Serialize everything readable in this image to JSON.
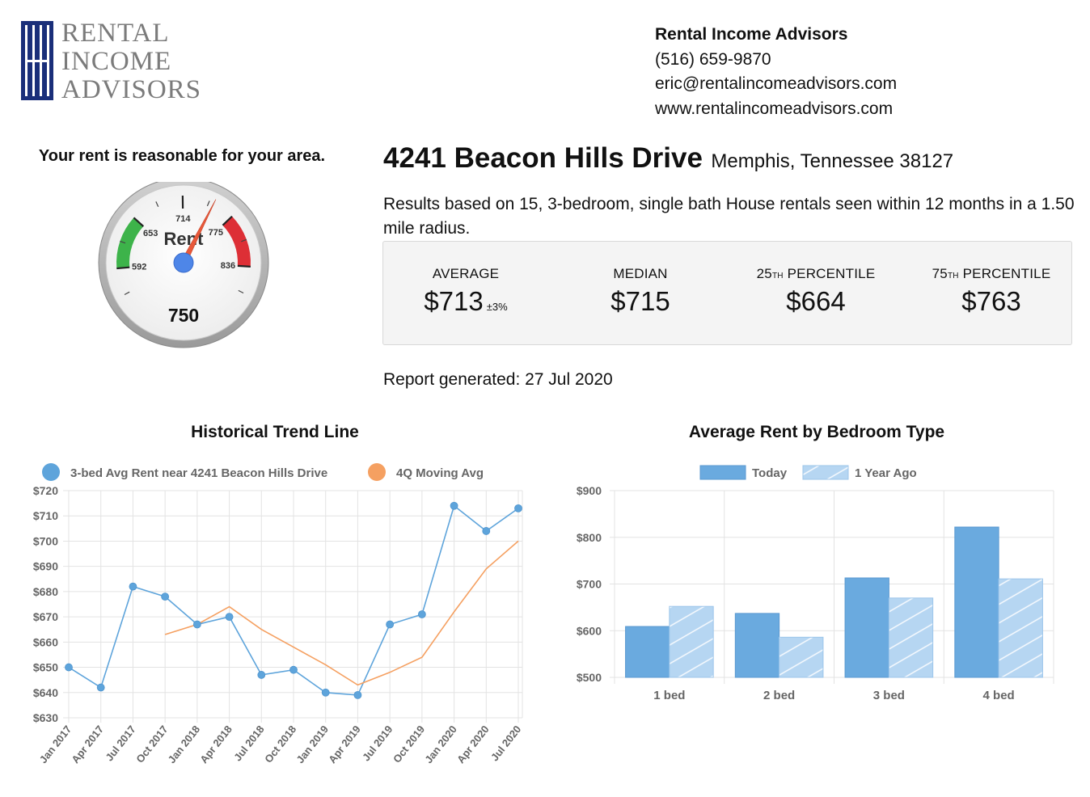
{
  "logo": {
    "line1": "RENTAL",
    "line2": "INCOME",
    "line3": "ADVISORS"
  },
  "contact": {
    "company": "Rental Income Advisors",
    "phone": "(516) 659-9870",
    "email": "eric@rentalincomeadvisors.com",
    "website": "www.rentalincomeadvisors.com"
  },
  "gauge": {
    "heading": "Your rent is reasonable for your area.",
    "label": "Rent",
    "value": 750,
    "ticks": [
      "592",
      "653",
      "714",
      "775",
      "836"
    ],
    "range": [
      540,
      890
    ],
    "green_range": [
      592,
      653
    ],
    "red_range": [
      775,
      836
    ]
  },
  "property": {
    "street": "4241 Beacon Hills Drive",
    "city": "Memphis, Tennessee 38127",
    "summary": "Results based on 15, 3-bedroom, single bath House rentals seen within 12 months in a 1.50 mile radius."
  },
  "stats": {
    "average_label": "AVERAGE",
    "average_value": "$713",
    "average_margin": "±3%",
    "median_label": "MEDIAN",
    "median_value": "$715",
    "p25_num": "25",
    "p25_suffix": "TH",
    "p25_word": " PERCENTILE",
    "p25_value": "$664",
    "p75_num": "75",
    "p75_suffix": "TH",
    "p75_word": " PERCENTILE",
    "p75_value": "$763"
  },
  "report": "Report generated: 27 Jul 2020",
  "colors": {
    "blue": "#5ea4db",
    "orange": "#f5a061",
    "bar_today": "#6aaadf",
    "bar_year_ago": "#b6d6f2",
    "gauge_green": "#3db34a",
    "gauge_red": "#dd2f36",
    "needle": "#e8593a",
    "hub": "#4e86e8"
  },
  "chart_data": [
    {
      "type": "line",
      "title": "Historical Trend Line",
      "x": [
        "Jan 2017",
        "Apr 2017",
        "Jul 2017",
        "Oct 2017",
        "Jan 2018",
        "Apr 2018",
        "Jul 2018",
        "Oct 2018",
        "Jan 2019",
        "Apr 2019",
        "Jul 2019",
        "Oct 2019",
        "Jan 2020",
        "Apr 2020",
        "Jul 2020"
      ],
      "ylim": [
        630,
        720
      ],
      "yticks": [
        "$630",
        "$640",
        "$650",
        "$660",
        "$670",
        "$680",
        "$690",
        "$700",
        "$710",
        "$720"
      ],
      "legend_position": "top",
      "grid": true,
      "series": [
        {
          "name": "3-bed Avg Rent near 4241 Beacon Hills Drive",
          "values": [
            650,
            642,
            682,
            678,
            667,
            670,
            647,
            649,
            640,
            639,
            667,
            671,
            714,
            704,
            713
          ]
        },
        {
          "name": "4Q Moving Avg",
          "values": [
            null,
            null,
            null,
            663,
            667,
            674,
            665,
            658,
            651,
            643,
            648,
            654,
            672,
            689,
            700
          ]
        }
      ]
    },
    {
      "type": "bar",
      "title": "Average Rent by Bedroom Type",
      "categories": [
        "1 bed",
        "2 bed",
        "3 bed",
        "4 bed"
      ],
      "ylim": [
        500,
        900
      ],
      "yticks": [
        "$500",
        "$600",
        "$700",
        "$800",
        "$900"
      ],
      "legend_position": "top",
      "grid": true,
      "series": [
        {
          "name": "Today",
          "values": [
            609,
            637,
            713,
            822
          ]
        },
        {
          "name": "1 Year Ago",
          "values": [
            652,
            586,
            670,
            711
          ]
        }
      ]
    }
  ]
}
